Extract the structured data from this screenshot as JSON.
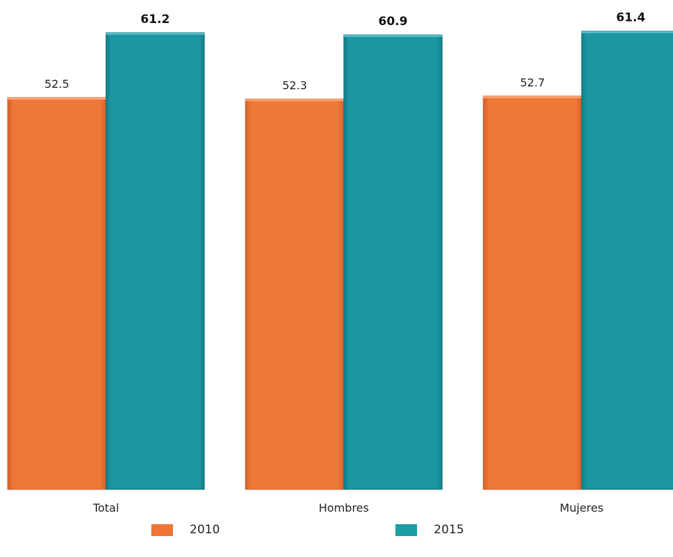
{
  "chart_data": {
    "type": "bar",
    "categories": [
      "Total",
      "Hombres",
      "Mujeres"
    ],
    "series": [
      {
        "name": "2010",
        "values": [
          52.5,
          52.3,
          52.7
        ],
        "color": "#ee7536"
      },
      {
        "name": "2015",
        "values": [
          61.2,
          60.9,
          61.4
        ],
        "color": "#1b94a0"
      }
    ],
    "title": "",
    "xlabel": "",
    "ylabel": "",
    "grid": false,
    "legend_position": "bottom"
  }
}
